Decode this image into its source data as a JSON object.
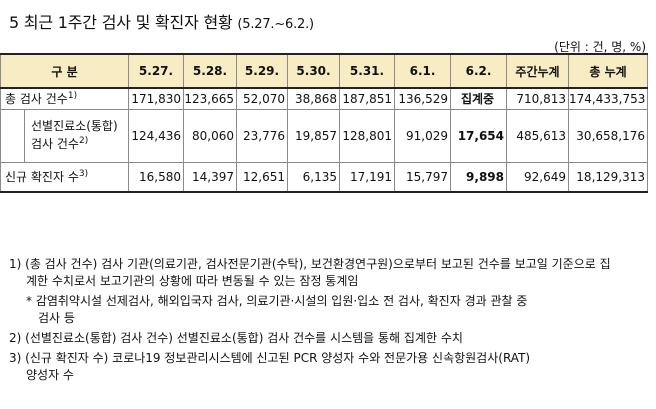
{
  "title": {
    "main": "5  최근 1주간 검사 및 확진자 현황 ",
    "period": "(5.27.~6.2.)"
  },
  "unit": "(단위 : 건, 명, %)",
  "table": {
    "headers": [
      "구 분",
      "5.27.",
      "5.28.",
      "5.29.",
      "5.30.",
      "5.31.",
      "6.1.",
      "6.2.",
      "주간누계",
      "총 누계"
    ],
    "total": {
      "label": "총 검사 건수",
      "note": "1)",
      "values": [
        "171,830",
        "123,665",
        "52,070",
        "38,868",
        "187,851",
        "136,529",
        "집계중",
        "710,813",
        "174,433,753"
      ]
    },
    "screening": {
      "label_line1": "선별진료소(통합)",
      "label_line2": "검사 건수",
      "note": "2)",
      "values": [
        "124,436",
        "80,060",
        "23,776",
        "19,857",
        "128,801",
        "91,029",
        "17,654",
        "485,613",
        "30,658,176"
      ]
    },
    "confirmed": {
      "label": "신규 확진자 수",
      "note": "3)",
      "values": [
        "16,580",
        "14,397",
        "12,651",
        "6,135",
        "17,191",
        "15,797",
        "9,898",
        "92,649",
        "18,129,313"
      ]
    }
  },
  "notes": {
    "n1_line1": "1) (총 검사 건수) 검사 기관(의료기관, 검사전문기관(수탁), 보건환경연구원)으로부터 보고된 건수를 보고일 기준으로 집",
    "n1_line2": "계한 수치로서 보고기관의 상황에 따라 변동될 수 있는 잠정 통계임",
    "n1s_line1": "* 감염취약시설 선제검사, 해외입국자 검사, 의료기관·시설의 입원·입소 전 검사, 확진자 경과 관찰 중",
    "n1s_line2": "검사 등",
    "n2": "2) (선별진료소(통합) 검사 건수) 선별진료소(통합) 검사 건수를 시스템을 통해 집계한 수치",
    "n3_line1": "3) (신규 확진자 수) 코로나19 정보관리시스템에 신고된 PCR 양성자 수와 전문가용 신속항원검사(RAT)",
    "n3_line2": "양성자 수"
  }
}
